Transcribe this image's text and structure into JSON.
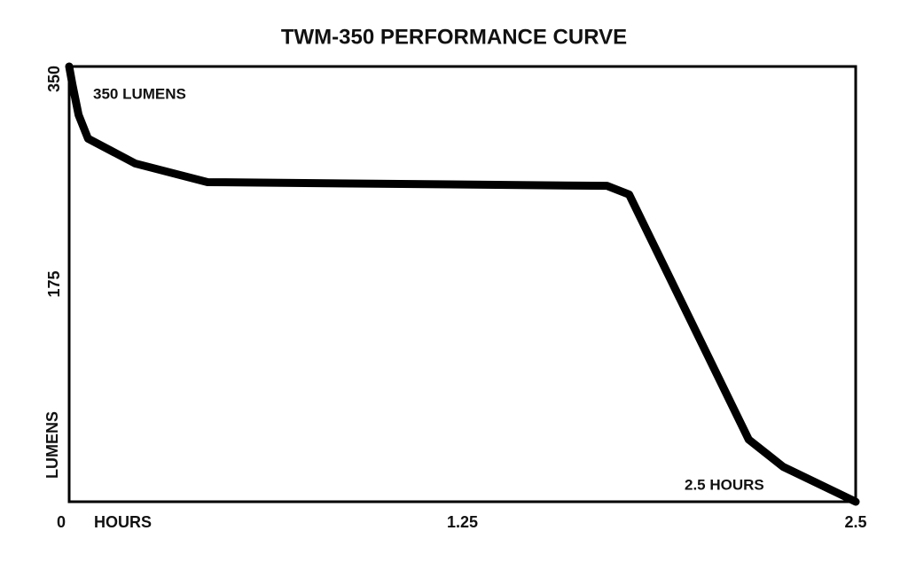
{
  "chart_data": {
    "type": "line",
    "title": "TWM-350 PERFORMANCE CURVE",
    "x_label": "HOURS",
    "y_label": "LUMENS",
    "annotations": [
      "350 LUMENS",
      "2.5 HOURS"
    ],
    "x": [
      0,
      0.01,
      0.03,
      0.06,
      0.21,
      0.44,
      1.71,
      1.78,
      2.16,
      2.27,
      2.5
    ],
    "series": [
      {
        "color": "#000000",
        "values": [
          350,
          336,
          311,
          292,
          272,
          257,
          254,
          247,
          50,
          28,
          0
        ]
      }
    ],
    "xlim": [
      0,
      2.5
    ],
    "ylim": [
      0,
      350
    ],
    "xticks": [
      0,
      1.25,
      2.5
    ],
    "yticks": [
      175,
      350
    ],
    "grid": false
  }
}
